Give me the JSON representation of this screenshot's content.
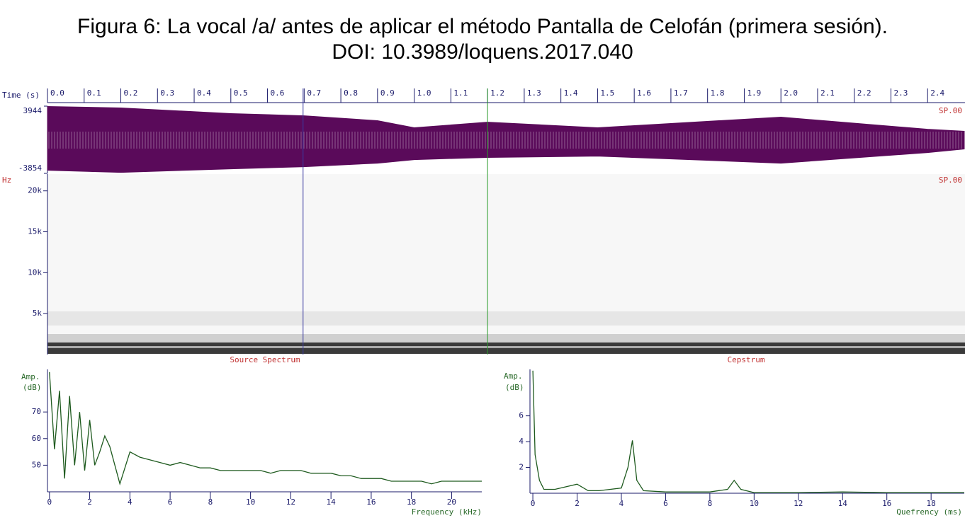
{
  "figure_title": [
    "Figura 6: La vocal /a/ antes de aplicar el método Pantalla de Celofán (primera sesión).",
    "DOI: 10.3989/loquens.2017.040"
  ],
  "cursors": [
    {
      "x": 0.697,
      "color": "#3a3aa0"
    },
    {
      "x": 1.2,
      "color": "#2a9a2a"
    }
  ],
  "chart_data": [
    {
      "type": "area",
      "xlabel": "Time (s)",
      "channel": "SP.00",
      "xlim": [
        0,
        2.5
      ],
      "ylim": [
        -3854,
        3944
      ],
      "xticks": [
        {
          "value": 0,
          "label": "0.0"
        },
        0.1,
        0.2,
        0.3,
        0.4,
        0.5,
        0.6,
        0.7,
        0.8,
        0.9,
        {
          "value": 1,
          "label": "1.0"
        },
        1.1,
        1.2,
        1.3,
        1.4,
        1.5,
        1.6,
        1.7,
        1.8,
        1.9,
        {
          "value": 2,
          "label": "2.0"
        },
        2.1,
        2.2,
        2.3,
        2.4
      ],
      "yticks": [
        3944,
        -3854
      ],
      "x": [
        0,
        0.2,
        0.5,
        0.7,
        0.9,
        1.0,
        1.2,
        1.5,
        2.0,
        2.4,
        2.5
      ],
      "series": [
        {
          "name": "upper",
          "color": "#5a0a5a",
          "values": [
            3900,
            3735,
            3080,
            2830,
            2260,
            1440,
            2090,
            1440,
            2670,
            1270,
            1030
          ]
        },
        {
          "name": "lower",
          "color": "#5a0a5a",
          "values": [
            -3490,
            -3735,
            -3325,
            -3080,
            -2670,
            -2260,
            -2010,
            -1850,
            -2670,
            -1440,
            -1030
          ]
        }
      ]
    },
    {
      "type": "spectrogram",
      "ylabel": "Hz",
      "channel": "SP.00",
      "ylim": [
        0,
        22050
      ],
      "yticks": [
        {
          "value": 5000,
          "label": "5k"
        },
        {
          "value": 10000,
          "label": "10k"
        },
        {
          "value": 15000,
          "label": "15k"
        },
        {
          "value": 20000,
          "label": "20k"
        }
      ]
    },
    {
      "type": "line",
      "title": "Source Spectrum",
      "ylabel": [
        "Amp.",
        "(dB)"
      ],
      "xlabel": "Frequency (kHz)",
      "xlim": [
        -0.1,
        21.5
      ],
      "ylim": [
        40,
        86
      ],
      "xticks": [
        0,
        2,
        4,
        6,
        8,
        10,
        12,
        14,
        16,
        18,
        20
      ],
      "yticks": [
        50,
        60,
        70
      ],
      "x": [
        0,
        0.25,
        0.5,
        0.75,
        1,
        1.25,
        1.5,
        1.75,
        2,
        2.25,
        2.5,
        2.75,
        3,
        3.5,
        4,
        4.5,
        5,
        5.5,
        6,
        6.5,
        7,
        7.5,
        8,
        8.5,
        9,
        9.5,
        10,
        10.5,
        11,
        11.5,
        12,
        12.5,
        13,
        13.5,
        14,
        14.5,
        15,
        15.5,
        16,
        16.5,
        17,
        17.5,
        18,
        18.5,
        19,
        19.5,
        20,
        20.5,
        21,
        21.5
      ],
      "color": "#1e5a1e",
      "values": [
        85,
        56,
        78,
        45,
        76,
        50,
        70,
        48,
        67,
        50,
        55,
        61,
        57,
        43,
        55,
        53,
        52,
        51,
        50,
        51,
        50,
        49,
        49,
        48,
        48,
        48,
        48,
        48,
        47,
        48,
        48,
        48,
        47,
        47,
        47,
        46,
        46,
        45,
        45,
        45,
        44,
        44,
        44,
        44,
        43,
        44,
        44,
        44,
        44,
        44
      ]
    },
    {
      "type": "line",
      "title": "Cepstrum",
      "ylabel": [
        "Amp.",
        "(dB)"
      ],
      "xlabel": "Quefrency (ms)",
      "xlim": [
        -0.13,
        19.5
      ],
      "ylim": [
        0,
        9.6
      ],
      "xticks": [
        0,
        2,
        4,
        6,
        8,
        10,
        12,
        14,
        16,
        18
      ],
      "yticks": [
        2,
        4,
        6
      ],
      "x": [
        0,
        0.1,
        0.3,
        0.5,
        1,
        2,
        2.5,
        3,
        4,
        4.3,
        4.5,
        4.7,
        5,
        6,
        7,
        8,
        8.8,
        9.1,
        9.4,
        10,
        12,
        14,
        16,
        18,
        19.5
      ],
      "color": "#1e5a1e",
      "values": [
        9.5,
        3,
        1,
        0.3,
        0.3,
        0.7,
        0.2,
        0.2,
        0.4,
        2,
        4.1,
        1,
        0.2,
        0.1,
        0.1,
        0.1,
        0.3,
        1,
        0.3,
        0.05,
        0.05,
        0.1,
        0.05,
        0.05,
        0.05
      ]
    }
  ]
}
